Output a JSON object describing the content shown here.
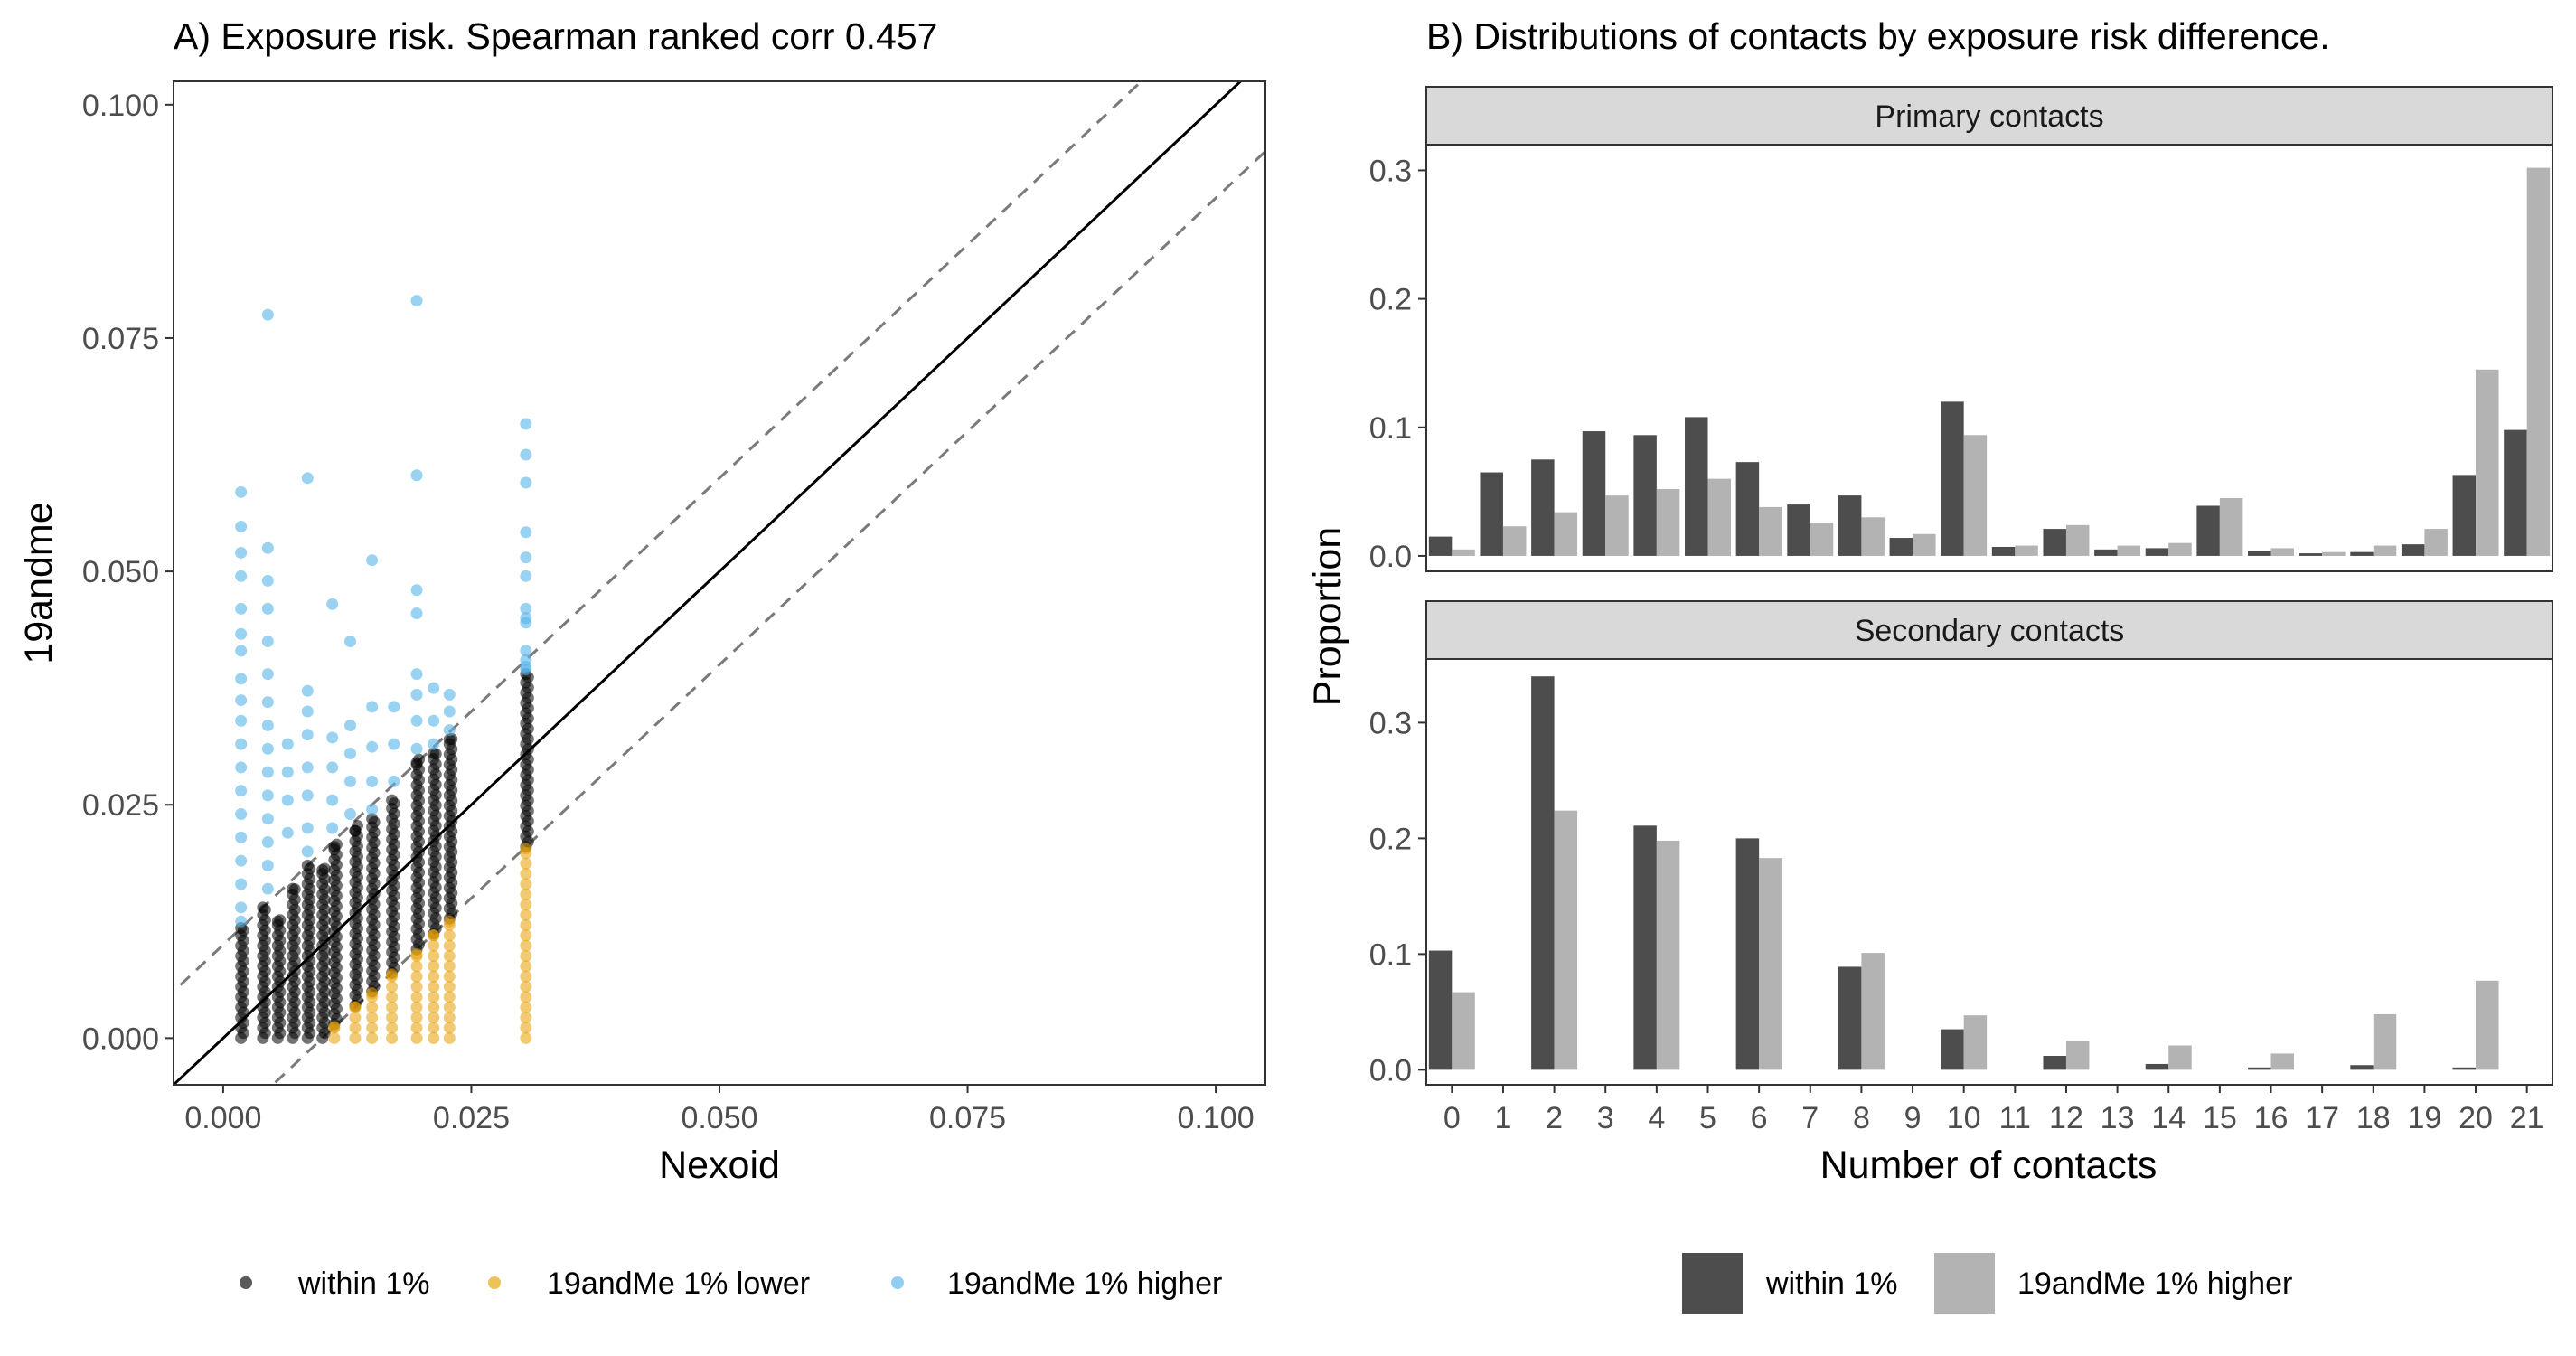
{
  "chart_data": [
    {
      "type": "scatter",
      "title": "A) Exposure risk. Spearman ranked corr 0.457",
      "xlabel": "Nexoid",
      "ylabel": "19andme",
      "xlim": [
        -0.005,
        0.105
      ],
      "ylim": [
        -0.005,
        0.1025
      ],
      "xticks": [
        0.0,
        0.025,
        0.05,
        0.075,
        0.1
      ],
      "xtick_labels": [
        "0.000",
        "0.025",
        "0.050",
        "0.075",
        "0.100"
      ],
      "yticks": [
        0.0,
        0.025,
        0.05,
        0.075,
        0.1
      ],
      "ytick_labels": [
        "0.000",
        "0.025",
        "0.050",
        "0.075",
        "0.100"
      ],
      "grid": false,
      "legend_position": "bottom",
      "reference_lines": [
        {
          "type": "solid",
          "intercept": 0.0,
          "slope": 1
        },
        {
          "type": "dashed",
          "intercept": 0.01,
          "slope": 1
        },
        {
          "type": "dashed",
          "intercept": -0.01,
          "slope": 1
        }
      ],
      "series": [
        {
          "name": "within 1%",
          "color": "#000000",
          "columns": [
            {
              "x": 0.0018,
              "y_min": 0.0,
              "y_max": 0.0118
            },
            {
              "x": 0.004,
              "y_min": 0.0,
              "y_max": 0.014
            },
            {
              "x": 0.0055,
              "y_min": 0.0,
              "y_max": 0.0125
            },
            {
              "x": 0.007,
              "y_min": 0.0,
              "y_max": 0.016
            },
            {
              "x": 0.0085,
              "y_min": 0.0,
              "y_max": 0.0185
            },
            {
              "x": 0.01,
              "y_min": 0.0,
              "y_max": 0.018
            },
            {
              "x": 0.0112,
              "y_min": 0.0015,
              "y_max": 0.0205
            },
            {
              "x": 0.0133,
              "y_min": 0.0035,
              "y_max": 0.0222
            },
            {
              "x": 0.015,
              "y_min": 0.005,
              "y_max": 0.0235
            },
            {
              "x": 0.017,
              "y_min": 0.007,
              "y_max": 0.0255
            },
            {
              "x": 0.0195,
              "y_min": 0.0095,
              "y_max": 0.0295
            },
            {
              "x": 0.0212,
              "y_min": 0.0112,
              "y_max": 0.0305
            },
            {
              "x": 0.0228,
              "y_min": 0.0128,
              "y_max": 0.032
            },
            {
              "x": 0.0305,
              "y_min": 0.0205,
              "y_max": 0.039
            }
          ]
        },
        {
          "name": "19andMe 1% lower",
          "color": "#E69F00",
          "columns": [
            {
              "x": 0.0112,
              "y_min": 0.0,
              "y_max": 0.0012
            },
            {
              "x": 0.0133,
              "y_min": 0.0,
              "y_max": 0.0033
            },
            {
              "x": 0.015,
              "y_min": 0.0,
              "y_max": 0.0048
            },
            {
              "x": 0.017,
              "y_min": 0.0,
              "y_max": 0.0068
            },
            {
              "x": 0.0195,
              "y_min": 0.0,
              "y_max": 0.009
            },
            {
              "x": 0.0212,
              "y_min": 0.0,
              "y_max": 0.011
            },
            {
              "x": 0.0228,
              "y_min": 0.0,
              "y_max": 0.0125
            },
            {
              "x": 0.0305,
              "y_min": 0.0,
              "y_max": 0.0203
            }
          ]
        },
        {
          "name": "19andMe 1% higher",
          "color": "#56B4E9",
          "points": [
            [
              0.0018,
              0.0585
            ],
            [
              0.0018,
              0.0548
            ],
            [
              0.0018,
              0.052
            ],
            [
              0.0018,
              0.0495
            ],
            [
              0.0018,
              0.046
            ],
            [
              0.0018,
              0.0433
            ],
            [
              0.0018,
              0.0415
            ],
            [
              0.0018,
              0.0385
            ],
            [
              0.0018,
              0.0362
            ],
            [
              0.0018,
              0.034
            ],
            [
              0.0018,
              0.0315
            ],
            [
              0.0018,
              0.029
            ],
            [
              0.0018,
              0.0265
            ],
            [
              0.0018,
              0.024
            ],
            [
              0.0018,
              0.0215
            ],
            [
              0.0018,
              0.019
            ],
            [
              0.0018,
              0.0165
            ],
            [
              0.0018,
              0.014
            ],
            [
              0.0018,
              0.0125
            ],
            [
              0.0045,
              0.0775
            ],
            [
              0.0045,
              0.0525
            ],
            [
              0.0045,
              0.049
            ],
            [
              0.0045,
              0.046
            ],
            [
              0.0045,
              0.0425
            ],
            [
              0.0045,
              0.039
            ],
            [
              0.0045,
              0.036
            ],
            [
              0.0045,
              0.0335
            ],
            [
              0.0045,
              0.031
            ],
            [
              0.0045,
              0.0285
            ],
            [
              0.0045,
              0.026
            ],
            [
              0.0045,
              0.0235
            ],
            [
              0.0045,
              0.021
            ],
            [
              0.0045,
              0.0185
            ],
            [
              0.0045,
              0.016
            ],
            [
              0.0065,
              0.0315
            ],
            [
              0.0065,
              0.0285
            ],
            [
              0.0065,
              0.0255
            ],
            [
              0.0065,
              0.022
            ],
            [
              0.0085,
              0.06
            ],
            [
              0.0085,
              0.0372
            ],
            [
              0.0085,
              0.035
            ],
            [
              0.0085,
              0.0325
            ],
            [
              0.0085,
              0.029
            ],
            [
              0.0085,
              0.026
            ],
            [
              0.0085,
              0.0225
            ],
            [
              0.0085,
              0.02
            ],
            [
              0.011,
              0.0465
            ],
            [
              0.011,
              0.0322
            ],
            [
              0.011,
              0.029
            ],
            [
              0.011,
              0.0255
            ],
            [
              0.011,
              0.0225
            ],
            [
              0.0128,
              0.0425
            ],
            [
              0.0128,
              0.0335
            ],
            [
              0.0128,
              0.0305
            ],
            [
              0.0128,
              0.0275
            ],
            [
              0.0128,
              0.024
            ],
            [
              0.015,
              0.0512
            ],
            [
              0.015,
              0.0355
            ],
            [
              0.015,
              0.0312
            ],
            [
              0.015,
              0.0275
            ],
            [
              0.015,
              0.0245
            ],
            [
              0.0172,
              0.0355
            ],
            [
              0.0172,
              0.0315
            ],
            [
              0.0172,
              0.0275
            ],
            [
              0.0195,
              0.079
            ],
            [
              0.0195,
              0.0603
            ],
            [
              0.0195,
              0.048
            ],
            [
              0.0195,
              0.0455
            ],
            [
              0.0195,
              0.039
            ],
            [
              0.0195,
              0.0368
            ],
            [
              0.0195,
              0.034
            ],
            [
              0.0195,
              0.031
            ],
            [
              0.0212,
              0.0375
            ],
            [
              0.0212,
              0.034
            ],
            [
              0.0212,
              0.0315
            ],
            [
              0.0228,
              0.0368
            ],
            [
              0.0228,
              0.035
            ],
            [
              0.0228,
              0.033
            ],
            [
              0.0305,
              0.0658
            ],
            [
              0.0305,
              0.0625
            ],
            [
              0.0305,
              0.0595
            ],
            [
              0.0305,
              0.0542
            ],
            [
              0.0305,
              0.0515
            ],
            [
              0.0305,
              0.0495
            ],
            [
              0.0305,
              0.046
            ],
            [
              0.0305,
              0.045
            ],
            [
              0.0305,
              0.0445
            ],
            [
              0.0305,
              0.0415
            ],
            [
              0.0305,
              0.0405
            ],
            [
              0.0305,
              0.0398
            ],
            [
              0.0305,
              0.0395
            ]
          ]
        }
      ]
    },
    {
      "type": "bar",
      "title": "B) Distributions of contacts by exposure risk difference.",
      "xlabel": "Number of contacts",
      "ylabel": "Proportion",
      "categories": [
        "0",
        "1",
        "2",
        "3",
        "4",
        "5",
        "6",
        "7",
        "8",
        "9",
        "10",
        "11",
        "12",
        "13",
        "14",
        "15",
        "16",
        "17",
        "18",
        "19",
        "20",
        "21"
      ],
      "legend_position": "bottom",
      "colors": {
        "within 1%": "#4d4d4d",
        "19andMe 1% higher": "#b3b3b3"
      },
      "panels": [
        {
          "name": "Primary contacts",
          "ylim": [
            -0.012,
            0.32
          ],
          "yticks": [
            0.0,
            0.1,
            0.2,
            0.3
          ],
          "ytick_labels": [
            "0.0",
            "0.1",
            "0.2",
            "0.3"
          ],
          "series": [
            {
              "name": "within 1%",
              "values": [
                0.015,
                0.065,
                0.075,
                0.097,
                0.094,
                0.108,
                0.073,
                0.04,
                0.047,
                0.014,
                0.12,
                0.007,
                0.021,
                0.005,
                0.006,
                0.039,
                0.004,
                0.002,
                0.003,
                0.009,
                0.063,
                0.098
              ]
            },
            {
              "name": "19andMe 1% higher",
              "values": [
                0.005,
                0.023,
                0.034,
                0.047,
                0.052,
                0.06,
                0.038,
                0.026,
                0.03,
                0.017,
                0.094,
                0.008,
                0.024,
                0.008,
                0.01,
                0.045,
                0.006,
                0.003,
                0.008,
                0.021,
                0.145,
                0.302
              ]
            }
          ]
        },
        {
          "name": "Secondary contacts",
          "ylim": [
            -0.013,
            0.355
          ],
          "yticks": [
            0.0,
            0.1,
            0.2,
            0.3
          ],
          "ytick_labels": [
            "0.0",
            "0.1",
            "0.2",
            "0.3"
          ],
          "series": [
            {
              "name": "within 1%",
              "values": [
                0.103,
                null,
                0.34,
                null,
                0.211,
                null,
                0.2,
                null,
                0.089,
                null,
                0.035,
                null,
                0.012,
                null,
                0.005,
                null,
                0.002,
                null,
                0.004,
                null,
                0.002,
                null
              ]
            },
            {
              "name": "19andMe 1% higher",
              "values": [
                0.067,
                null,
                0.224,
                null,
                0.198,
                null,
                0.183,
                null,
                0.101,
                null,
                0.047,
                null,
                0.025,
                null,
                0.021,
                null,
                0.014,
                null,
                0.048,
                null,
                0.077,
                null
              ]
            }
          ]
        }
      ]
    }
  ]
}
